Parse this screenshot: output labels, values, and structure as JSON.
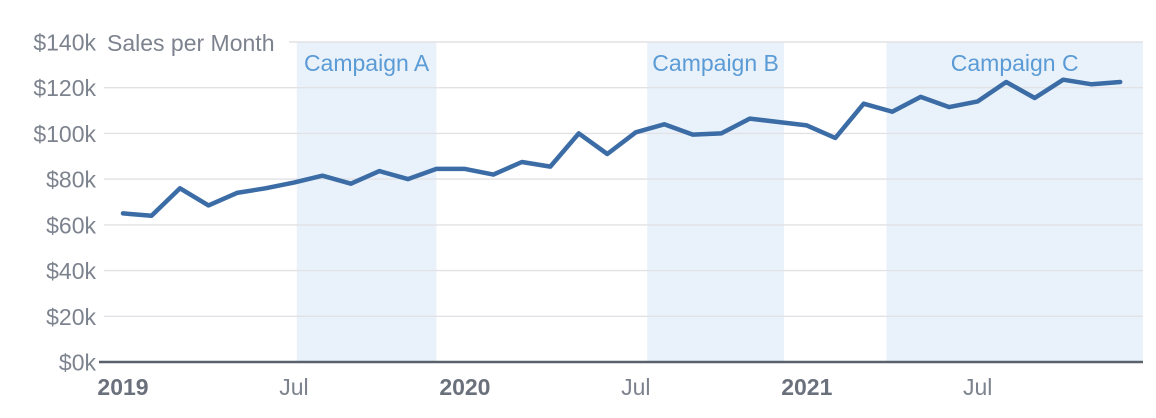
{
  "chart_data": {
    "type": "line",
    "title": "Sales per Month",
    "xlabel": "",
    "ylabel": "",
    "grid": true,
    "ylim_usd": [
      0,
      140000
    ],
    "y_ticks": [
      "$0k",
      "$20k",
      "$40k",
      "$60k",
      "$80k",
      "$100k",
      "$120k",
      "$140k"
    ],
    "x_ticks": [
      {
        "month_index": 0,
        "label": "2019",
        "bold": true
      },
      {
        "month_index": 6,
        "label": "Jul",
        "bold": false
      },
      {
        "month_index": 12,
        "label": "2020",
        "bold": true
      },
      {
        "month_index": 18,
        "label": "Jul",
        "bold": false
      },
      {
        "month_index": 24,
        "label": "2021",
        "bold": true
      },
      {
        "month_index": 30,
        "label": "Jul",
        "bold": false
      }
    ],
    "months": [
      "2019-01",
      "2019-02",
      "2019-03",
      "2019-04",
      "2019-05",
      "2019-06",
      "2019-07",
      "2019-08",
      "2019-09",
      "2019-10",
      "2019-11",
      "2019-12",
      "2020-01",
      "2020-02",
      "2020-03",
      "2020-04",
      "2020-05",
      "2020-06",
      "2020-07",
      "2020-08",
      "2020-09",
      "2020-10",
      "2020-11",
      "2020-12",
      "2021-01",
      "2021-02",
      "2021-03",
      "2021-04",
      "2021-05",
      "2021-06",
      "2021-07",
      "2021-08",
      "2021-09",
      "2021-10",
      "2021-11",
      "2021-12"
    ],
    "series": [
      {
        "name": "Sales",
        "values_usd_thousands": [
          65,
          64,
          76,
          68.5,
          74,
          76,
          78.5,
          81.5,
          78,
          83.5,
          80,
          84.5,
          84.5,
          82,
          87.5,
          85.5,
          100,
          91,
          100.5,
          104,
          99.5,
          100,
          106.5,
          105,
          103.5,
          98,
          113,
          109.5,
          116,
          111.5,
          114,
          122.5,
          115.5,
          123.5,
          121.5,
          122.5
        ]
      }
    ],
    "campaigns": [
      {
        "label": "Campaign A",
        "start_month_index": 6.1,
        "end_month_index": 11.0,
        "period": "Jul 2019 - Nov 2019"
      },
      {
        "label": "Campaign B",
        "start_month_index": 18.4,
        "end_month_index": 23.2,
        "period": "mid-Jul 2020 - Nov 2020"
      },
      {
        "label": "Campaign C",
        "start_month_index": 26.8,
        "end_month_index": 35.8,
        "period": "Apr 2021 - Dec 2021"
      }
    ],
    "colors": {
      "background": "#ffffff",
      "line": "#3b6ca5",
      "campaign_band": "#e9f2fb",
      "campaign_label": "#5b9bd5",
      "gridline": "#e2e2e6",
      "axis_line": "#59616d",
      "tick_label": "#7d838e",
      "year_label": "#6b717c",
      "title": "#7d838e"
    }
  }
}
